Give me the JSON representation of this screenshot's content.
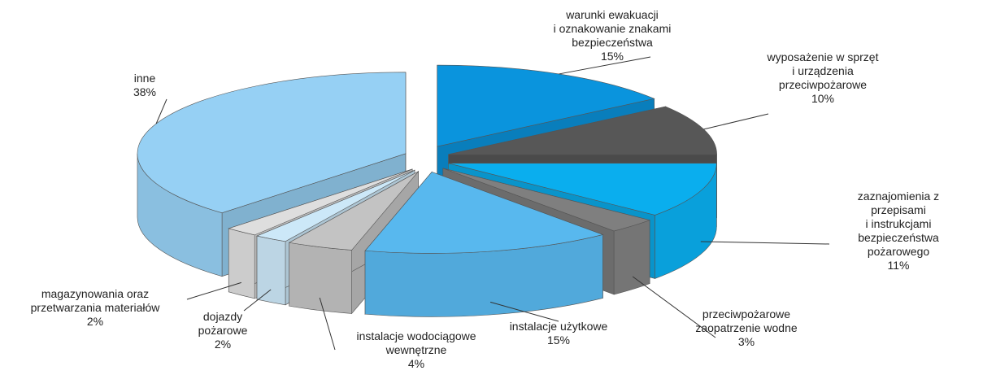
{
  "chart_data": {
    "type": "pie3d",
    "categories": [
      "warunki ewakuacji\ni oznakowanie znakami\nbezpieczeństwa",
      "wyposażenie w sprzęt\ni urządzenia\nprzeciwpożarowe",
      "zaznajomienia z przepisami\ni instrukcjami bezpieczeństwa\npożarowego",
      "przeciwpożarowe\nzaopatrzenie wodne",
      "instalacje użytkowe",
      "instalacje wodociągowe\nwewnętrzne",
      "dojazdy\npożarowe",
      "magazynowania oraz\nprzetwarzania materiałów",
      "inne"
    ],
    "values": [
      15,
      10,
      11,
      3,
      15,
      4,
      2,
      2,
      38
    ],
    "value_labels": [
      "15%",
      "10%",
      "11%",
      "3%",
      "15%",
      "4%",
      "2%",
      "2%",
      "38%"
    ],
    "colors": [
      "#0a94dd",
      "#575757",
      "#0aaeee",
      "#7f7f7f",
      "#58b8ee",
      "#c3c3c3",
      "#cce8f8",
      "#dedede",
      "#96d0f4"
    ]
  }
}
